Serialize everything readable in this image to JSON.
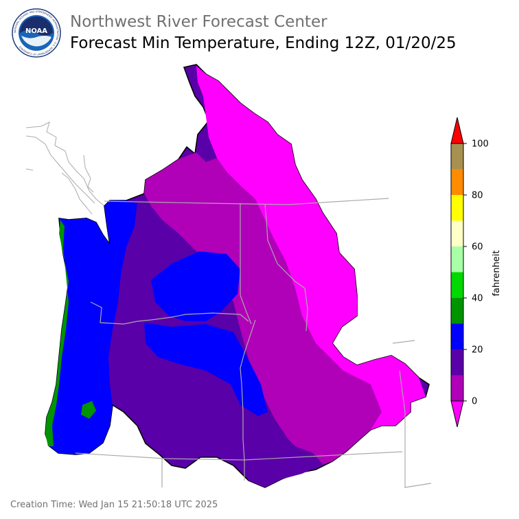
{
  "header": {
    "organization": "Northwest River Forecast Center",
    "title": "Forecast Min Temperature, Ending 12Z, 01/20/25"
  },
  "logo": {
    "text": "NOAA",
    "ring_text": "NATIONAL OCEANIC AND ATMOSPHERIC ADMINISTRATION · U.S. DEPARTMENT OF COMMERCE"
  },
  "colorbar": {
    "label": "fahrenheit",
    "ticks": [
      "0",
      "20",
      "40",
      "60",
      "80",
      "100"
    ],
    "tick_values": [
      0,
      20,
      40,
      60,
      80,
      100
    ],
    "under_color": "#ff00ff",
    "over_color": "#ff0000",
    "bins": [
      {
        "from": 0,
        "to": 10,
        "color": "#b000b8"
      },
      {
        "from": 10,
        "to": 20,
        "color": "#5a00a8"
      },
      {
        "from": 20,
        "to": 30,
        "color": "#0000ff"
      },
      {
        "from": 30,
        "to": 40,
        "color": "#009400"
      },
      {
        "from": 40,
        "to": 50,
        "color": "#00d800"
      },
      {
        "from": 50,
        "to": 60,
        "color": "#a8ffa8"
      },
      {
        "from": 60,
        "to": 70,
        "color": "#ffffc8"
      },
      {
        "from": 70,
        "to": 80,
        "color": "#ffff00"
      },
      {
        "from": 80,
        "to": 90,
        "color": "#ff8c00"
      },
      {
        "from": 90,
        "to": 100,
        "color": "#a89050"
      }
    ]
  },
  "footer": {
    "creation_time": "Creation Time: Wed Jan 15 21:50:18 UTC 2025"
  }
}
